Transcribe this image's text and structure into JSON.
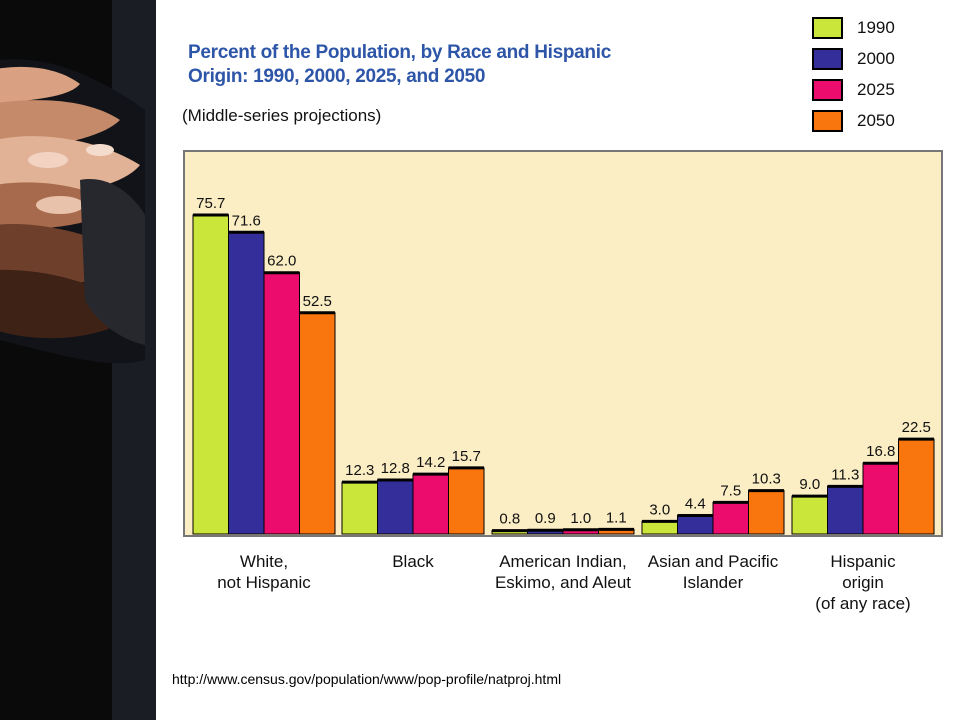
{
  "source_url": "http://www.census.gov/population/www/pop-profile/natproj.html",
  "colors": {
    "1990": "#cbe63a",
    "2000": "#332e9a",
    "2025": "#ec0c6e",
    "2050": "#f9760e",
    "plot_background": "#fbedc4",
    "title": "#2d55a8"
  },
  "chart_data": {
    "type": "bar",
    "title": "Percent of the Population, by Race and Hispanic Origin:  1990, 2000, 2025, and 2050",
    "title_lines": [
      "Percent of the Population, by Race and Hispanic",
      "Origin:  1990, 2000, 2025, and 2050"
    ],
    "subtitle": "(Middle-series projections)",
    "xlabel": "",
    "ylabel": "",
    "ylim": [
      0,
      80
    ],
    "grid": false,
    "legend_position": "top-right",
    "categories": [
      "White, not Hispanic",
      "Black",
      "American Indian, Eskimo, and Aleut",
      "Asian and Pacific Islander",
      "Hispanic origin (of any race)"
    ],
    "category_label_lines": [
      [
        "White,",
        "not Hispanic"
      ],
      [
        "Black"
      ],
      [
        "American Indian,",
        "Eskimo, and Aleut"
      ],
      [
        "Asian and Pacific",
        "Islander"
      ],
      [
        "Hispanic",
        "origin",
        "(of any race)"
      ]
    ],
    "series": [
      {
        "name": "1990",
        "values": [
          75.7,
          12.3,
          0.8,
          3.0,
          9.0
        ],
        "labels": [
          "75.7",
          "12.3",
          "0.8",
          "3.0",
          "9.0"
        ]
      },
      {
        "name": "2000",
        "values": [
          71.6,
          12.8,
          0.9,
          4.4,
          11.3
        ],
        "labels": [
          "71.6",
          "12.8",
          "0.9",
          "4.4",
          "11.3"
        ]
      },
      {
        "name": "2025",
        "values": [
          62.0,
          14.2,
          1.0,
          7.5,
          16.8
        ],
        "labels": [
          "62.0",
          "14.2",
          "1.0",
          "7.5",
          "16.8"
        ]
      },
      {
        "name": "2050",
        "values": [
          52.5,
          15.7,
          1.1,
          10.3,
          22.5
        ],
        "labels": [
          "52.5",
          "15.7",
          "1.1",
          "10.3",
          "22.5"
        ]
      }
    ]
  }
}
